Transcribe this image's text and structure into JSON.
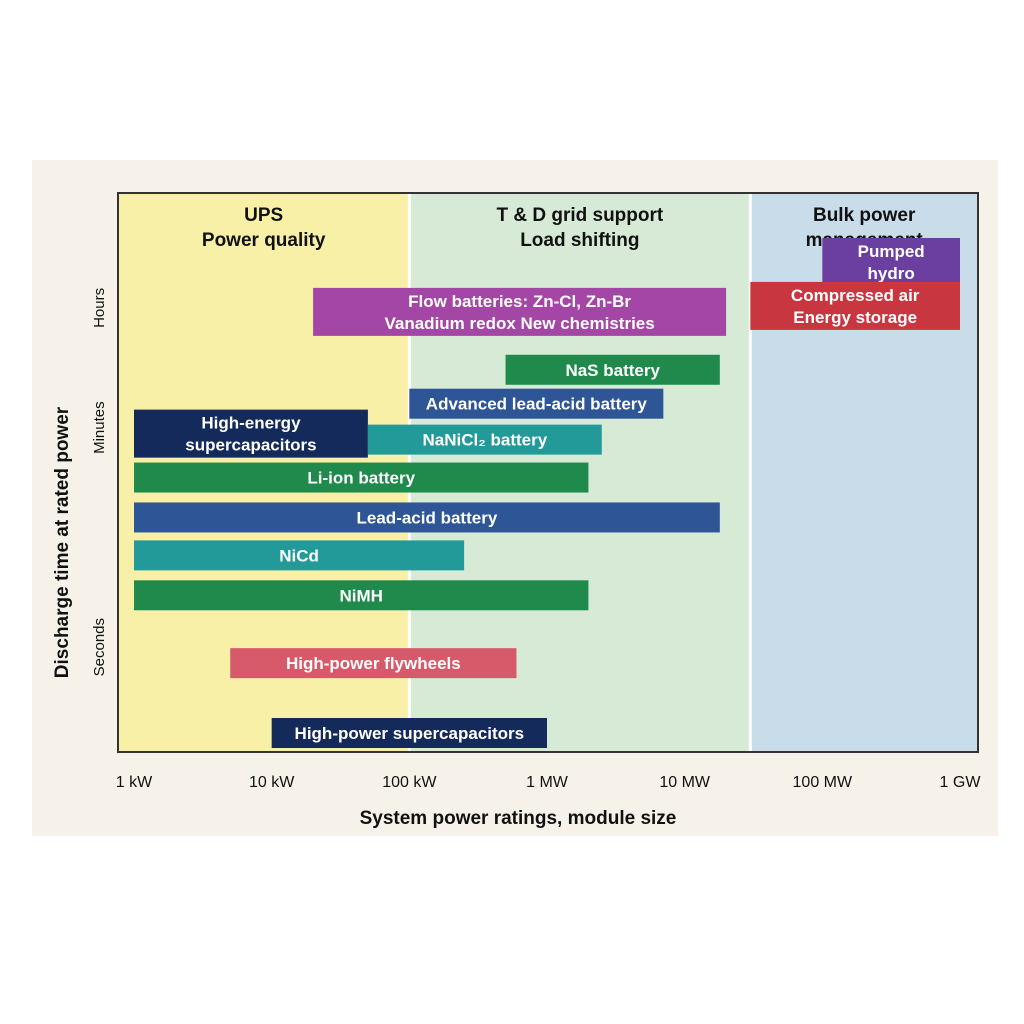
{
  "chart_data": {
    "type": "bar",
    "xlabel": "System power ratings, module size",
    "ylabel": "Discharge time at rated power",
    "x_scale": "log",
    "x_ticks": [
      "1 kW",
      "10 kW",
      "100 kW",
      "1 MW",
      "10 MW",
      "100 MW",
      "1 GW"
    ],
    "y_ticks": [
      "Seconds",
      "Minutes",
      "Hours"
    ],
    "regions": [
      {
        "lines": [
          "UPS",
          "Power quality"
        ],
        "from_kw": 1,
        "to_kw": 100,
        "color": "#f7f0a6"
      },
      {
        "lines": [
          "T & D grid support",
          "Load shifting"
        ],
        "from_kw": 100,
        "to_kw": 30000,
        "color": "#d7ead5"
      },
      {
        "lines": [
          "Bulk power",
          "management"
        ],
        "from_kw": 30000,
        "to_kw": 1000000,
        "color": "#c9dcea"
      }
    ],
    "bars": [
      {
        "lines": [
          "Pumped",
          "hydro"
        ],
        "from_kw": 100000,
        "to_kw": 1000000,
        "time_level": 2.78,
        "color": "#6b3fa0"
      },
      {
        "lines": [
          "Compressed air",
          "Energy storage"
        ],
        "from_kw": 30000,
        "to_kw": 1000000,
        "time_level": 2.56,
        "color": "#c8363f"
      },
      {
        "lines": [
          "Flow batteries: Zn-Cl,  Zn-Br",
          "Vanadium redox       New chemistries"
        ],
        "from_kw": 20,
        "to_kw": 20000,
        "time_level": 2.53,
        "color": "#a446a6"
      },
      {
        "lines": [
          "NaS battery"
        ],
        "from_kw": 500,
        "to_kw": 18000,
        "time_level": 2.24,
        "color": "#1f8a4c"
      },
      {
        "lines": [
          "Advanced lead-acid battery"
        ],
        "from_kw": 100,
        "to_kw": 7000,
        "time_level": 2.07,
        "color": "#2e5595"
      },
      {
        "lines": [
          "High-energy",
          "supercapacitors"
        ],
        "from_kw": 1,
        "to_kw": 50,
        "time_level": 1.92,
        "color": "#142a5a"
      },
      {
        "lines": [
          "NaNiCl₂ battery"
        ],
        "from_kw": 50,
        "to_kw": 2500,
        "time_level": 1.89,
        "color": "#239a9a"
      },
      {
        "lines": [
          "Li-ion battery"
        ],
        "from_kw": 1,
        "to_kw": 2000,
        "time_level": 1.7,
        "color": "#1f8a4c"
      },
      {
        "lines": [
          "Lead-acid battery"
        ],
        "from_kw": 1,
        "to_kw": 18000,
        "time_level": 1.5,
        "color": "#2e5595"
      },
      {
        "lines": [
          "NiCd"
        ],
        "from_kw": 1,
        "to_kw": 250,
        "time_level": 1.31,
        "color": "#239a9a"
      },
      {
        "lines": [
          "NiMH"
        ],
        "from_kw": 1,
        "to_kw": 2000,
        "time_level": 1.11,
        "color": "#1f8a4c"
      },
      {
        "lines": [
          "High-power flywheels"
        ],
        "from_kw": 5,
        "to_kw": 600,
        "time_level": 0.77,
        "color": "#d65a6a"
      },
      {
        "lines": [
          "High-power supercapacitors"
        ],
        "from_kw": 10,
        "to_kw": 1000,
        "time_level": 0.42,
        "color": "#142a5a"
      }
    ]
  }
}
